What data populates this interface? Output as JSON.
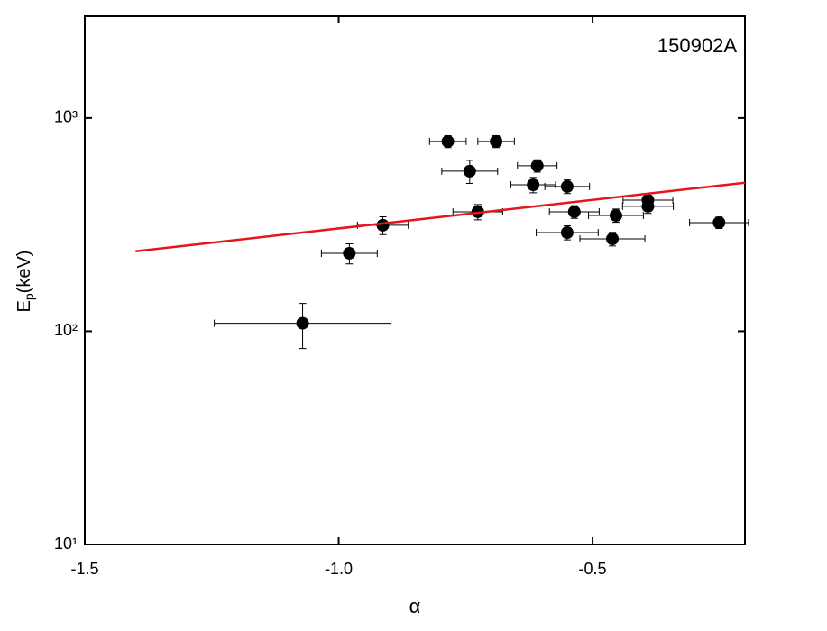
{
  "chart_data": {
    "type": "scatter",
    "annotation": "150902A",
    "xlabel": "α",
    "ylabel": {
      "main": "E",
      "sub": "p",
      "unit": "(keV)"
    },
    "xlim": [
      -1.5,
      -0.2
    ],
    "xticks": [
      -1.5,
      {
        "value": -1,
        "label": "-1.0"
      },
      -0.5
    ],
    "ylim": [
      10,
      3000
    ],
    "yticks": [
      {
        "value": 10,
        "label": "10¹"
      },
      {
        "value": 100,
        "label": "10²"
      },
      {
        "value": 1000,
        "label": "10³"
      }
    ],
    "log_y": true,
    "series": [
      {
        "type": "scatter",
        "color": "#000000",
        "x": [
          -1.071,
          -0.979,
          -0.913,
          -0.785,
          -0.69,
          -0.742,
          -0.726,
          -0.609,
          -0.617,
          -0.55,
          -0.536,
          -0.55,
          -0.454,
          -0.461,
          -0.391,
          -0.391,
          -0.251
        ],
        "values": [
          109,
          232,
          314,
          776,
          776,
          563,
          363,
          597,
          486,
          477,
          363,
          290,
          349,
          271,
          412,
          385,
          323
        ],
        "xerr": [
          0.174,
          0.055,
          0.05,
          0.036,
          0.036,
          0.055,
          0.049,
          0.039,
          0.044,
          0.044,
          0.049,
          0.061,
          0.054,
          0.064,
          0.049,
          0.05,
          0.058
        ],
        "yerr": [
          26,
          25,
          30,
          50,
          50,
          70,
          30,
          40,
          40,
          35,
          25,
          22,
          25,
          20,
          30,
          28,
          20
        ]
      },
      {
        "type": "line",
        "color": "#e8141c",
        "x": [
          -1.4,
          -0.2
        ],
        "values": [
          237,
          497
        ]
      }
    ]
  }
}
